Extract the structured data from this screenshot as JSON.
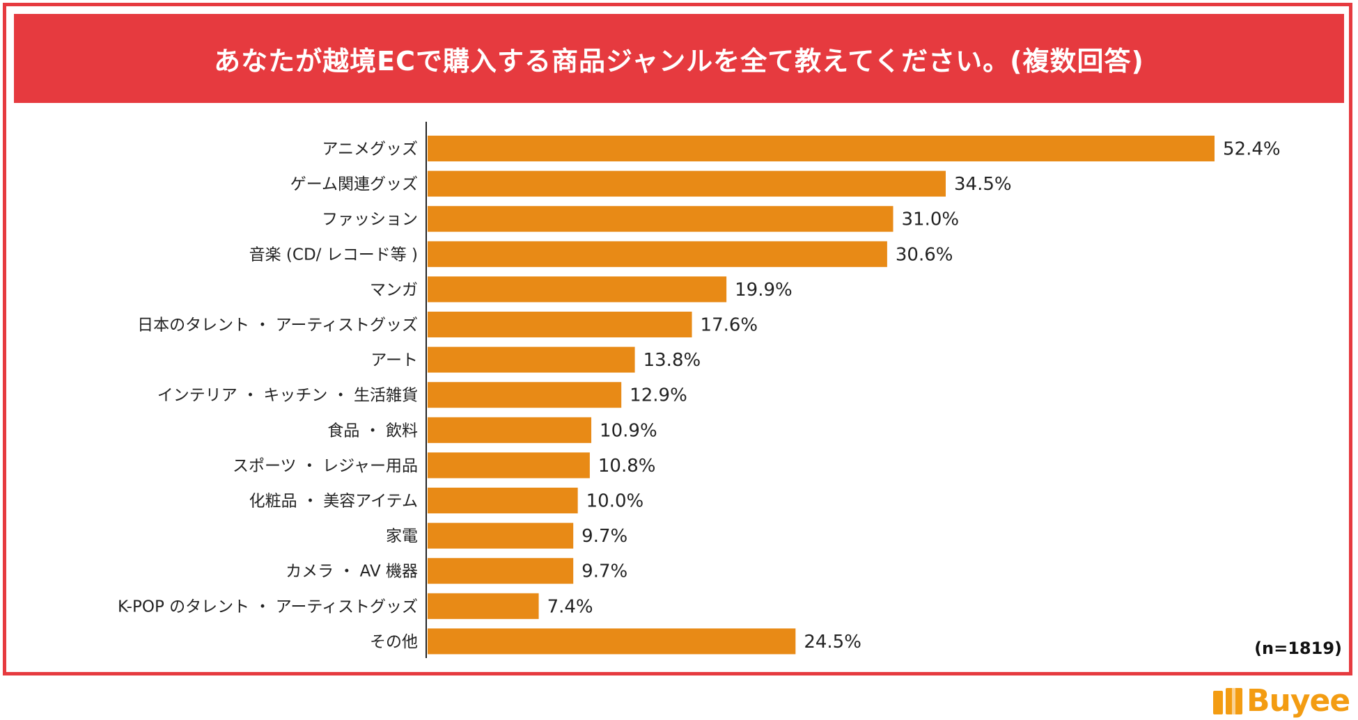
{
  "title": "あなたが越境ECで購入する商品ジャンルを全て教えてください。(複数回答)",
  "note": "(n=1819)",
  "logo_text": "Buyee",
  "colors": {
    "accent": "#e63a3f",
    "bar": "#e88a16",
    "logo": "#f39c12"
  },
  "chart_data": {
    "type": "bar",
    "orientation": "horizontal",
    "title": "あなたが越境ECで購入する商品ジャンルを全て教えてください。(複数回答)",
    "xlabel": "",
    "ylabel": "",
    "xlim": [
      0,
      60
    ],
    "grid": false,
    "categories": [
      "アニメグッズ",
      "ゲーム関連グッズ",
      "ファッション",
      "音楽 (CD/ レコード等 )",
      "マンガ",
      "日本のタレント ・ アーティストグッズ",
      "アート",
      "インテリア ・ キッチン ・ 生活雑貨",
      "食品 ・ 飲料",
      "スポーツ ・ レジャー用品",
      "化粧品 ・ 美容アイテム",
      "家電",
      "カメラ ・ AV 機器",
      "K-POP のタレント ・ アーティストグッズ",
      "その他"
    ],
    "values": [
      52.4,
      34.5,
      31.0,
      30.6,
      19.9,
      17.6,
      13.8,
      12.9,
      10.9,
      10.8,
      10.0,
      9.7,
      9.7,
      7.4,
      24.5
    ],
    "value_labels": [
      "52.4%",
      "34.5%",
      "31.0%",
      "30.6%",
      "19.9%",
      "17.6%",
      "13.8%",
      "12.9%",
      "10.9%",
      "10.8%",
      "10.0%",
      "9.7%",
      "9.7%",
      "7.4%",
      "24.5%"
    ]
  }
}
